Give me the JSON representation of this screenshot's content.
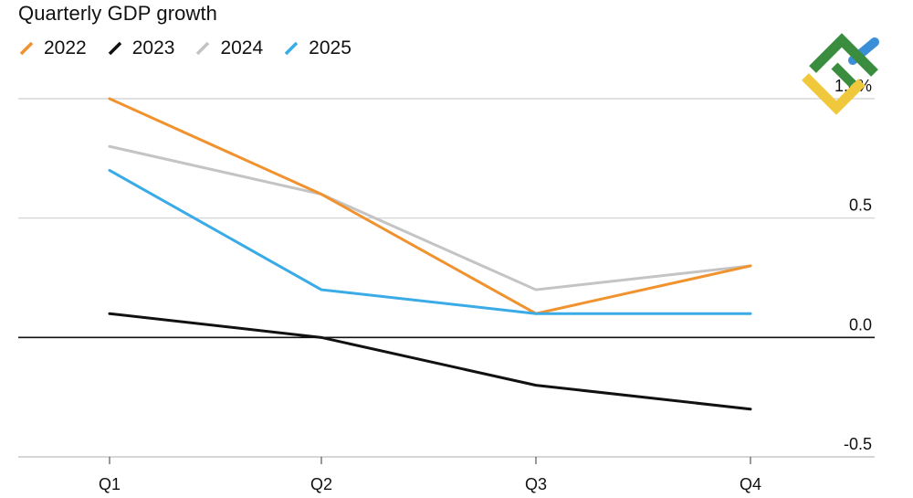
{
  "colors": {
    "s2022": "#f0922e",
    "s2023": "#111111",
    "s2024": "#c4c4c4",
    "s2025": "#3aabe6",
    "grid": "#cfcfcf",
    "zero": "#111111",
    "axis": "#bdbdbd",
    "logo_green": "#3a8d3e",
    "logo_yellow": "#f0c83c",
    "logo_blue": "#3a8fd8"
  },
  "logo": {
    "icon": "brand-logo-icon"
  },
  "chart_data": {
    "type": "line",
    "title": "Quarterly GDP growth",
    "categories": [
      "Q1",
      "Q2",
      "Q3",
      "Q4"
    ],
    "series": [
      {
        "name": "2022",
        "color": "#f0922e",
        "values": [
          1.0,
          0.6,
          0.1,
          0.3
        ]
      },
      {
        "name": "2023",
        "color": "#111111",
        "values": [
          0.1,
          0.0,
          -0.2,
          -0.3
        ]
      },
      {
        "name": "2024",
        "color": "#c4c4c4",
        "values": [
          0.8,
          0.6,
          0.2,
          0.3
        ]
      },
      {
        "name": "2025",
        "color": "#3aabe6",
        "values": [
          0.7,
          0.2,
          0.1,
          0.1
        ]
      }
    ],
    "series_draw_order": [
      2,
      1,
      0,
      3
    ],
    "y_ticks": [
      {
        "value": 1.0,
        "label": "1.0%"
      },
      {
        "value": 0.5,
        "label": "0.5"
      },
      {
        "value": 0.0,
        "label": "0.0"
      },
      {
        "value": -0.5,
        "label": "-0.5"
      }
    ],
    "ylim": [
      -0.5,
      1.0
    ],
    "grid": true,
    "legend": "top-left",
    "y_axis_position": "right"
  }
}
